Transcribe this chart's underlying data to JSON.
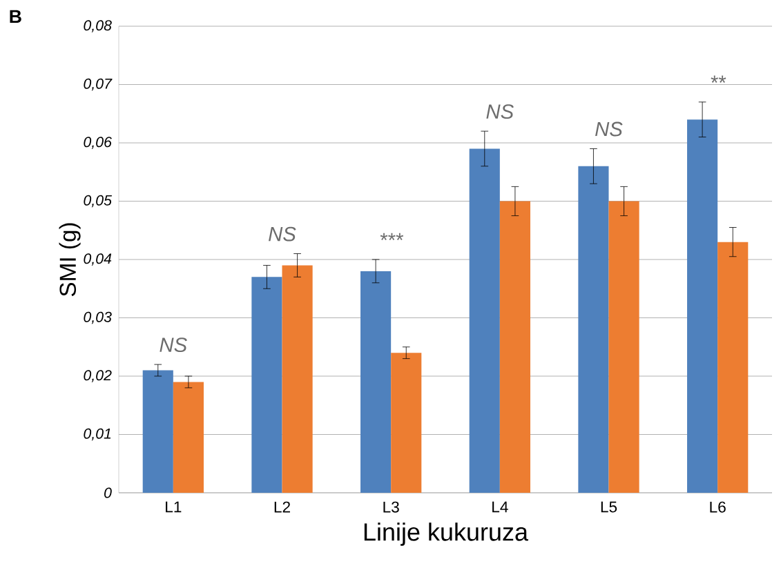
{
  "chart_data": {
    "type": "bar",
    "xlabel": "Linije kukuruza",
    "ylabel": "SMI (g)",
    "categories": [
      "L1",
      "L2",
      "L3",
      "L4",
      "L5",
      "L6"
    ],
    "series": [
      {
        "color": "#4f81bd",
        "values": [
          0.021,
          0.037,
          0.038,
          0.059,
          0.056,
          0.064
        ],
        "errors": [
          0.001,
          0.002,
          0.002,
          0.003,
          0.003,
          0.003
        ]
      },
      {
        "color": "#ed7d31",
        "values": [
          0.019,
          0.039,
          0.024,
          0.05,
          0.05,
          0.043
        ],
        "errors": [
          0.001,
          0.002,
          0.001,
          0.0025,
          0.0025,
          0.0025
        ]
      }
    ],
    "ylim": [
      0,
      0.08
    ],
    "yticks": [
      0,
      {
        "value": 0.01,
        "label": "0,01"
      },
      {
        "value": 0.02,
        "label": "0,02"
      },
      {
        "value": 0.03,
        "label": "0,03"
      },
      {
        "value": 0.04,
        "label": "0,04"
      },
      {
        "value": 0.05,
        "label": "0,05"
      },
      {
        "value": 0.06,
        "label": "0,06"
      },
      {
        "value": 0.07,
        "label": "0,07"
      },
      {
        "value": 0.08,
        "label": "0,08"
      }
    ],
    "grid": "y",
    "annotations": [
      "B",
      "NS",
      "NS",
      "***",
      "NS",
      "NS",
      "**"
    ]
  }
}
